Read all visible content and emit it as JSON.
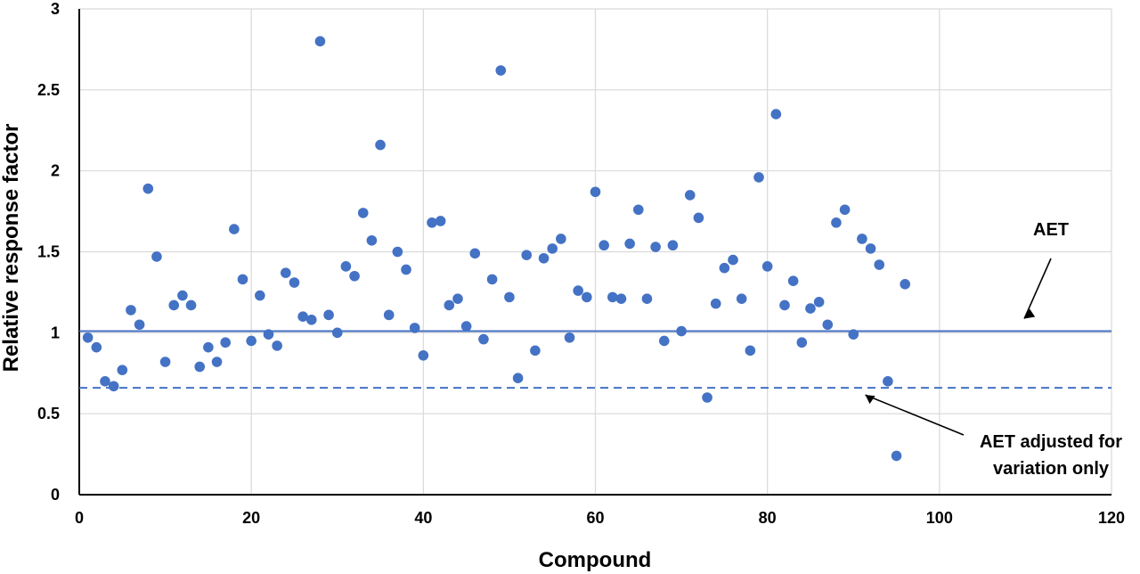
{
  "chart_data": {
    "type": "scatter",
    "xlabel": "Compound",
    "ylabel": "Relative response factor",
    "xlim": [
      0,
      120
    ],
    "ylim": [
      0,
      3
    ],
    "x_ticks": [
      "0",
      "20",
      "40",
      "60",
      "80",
      "100",
      "120"
    ],
    "y_ticks": [
      "0",
      "0.5",
      "1",
      "1.5",
      "2",
      "2.5",
      "3"
    ],
    "grid": true,
    "colors": {
      "points": "#4472C4",
      "lines": "#4472C4",
      "grid": "#d9d9d9"
    },
    "series": [
      {
        "x": [
          1,
          2,
          3,
          4,
          5,
          6,
          7,
          8,
          9,
          10,
          11,
          12,
          13,
          14,
          15,
          16,
          17,
          18,
          19,
          20,
          21,
          22,
          23,
          24,
          25,
          26,
          27,
          28,
          29,
          30,
          31,
          32,
          33,
          34,
          35,
          36,
          37,
          38,
          39,
          40,
          41,
          42,
          43,
          44,
          45,
          46,
          47,
          48,
          49,
          50,
          51,
          52,
          53,
          54,
          55,
          56,
          57,
          58,
          59,
          60,
          61,
          62,
          63,
          64,
          65,
          66,
          67,
          68,
          69,
          70,
          71,
          72,
          73,
          74,
          75,
          76,
          77,
          78,
          79,
          80,
          81,
          82,
          83,
          84,
          85,
          86,
          87,
          88,
          89,
          90,
          91,
          92,
          93,
          94,
          95,
          96
        ],
        "y": [
          0.97,
          0.91,
          0.7,
          0.67,
          0.77,
          1.14,
          1.05,
          1.89,
          1.47,
          0.82,
          1.17,
          1.23,
          1.17,
          0.79,
          0.91,
          0.82,
          0.94,
          1.64,
          1.33,
          0.95,
          1.23,
          0.99,
          0.92,
          1.37,
          1.31,
          1.1,
          1.08,
          2.8,
          1.11,
          1.0,
          1.41,
          1.35,
          1.74,
          1.57,
          2.16,
          1.11,
          1.5,
          1.39,
          1.03,
          0.86,
          1.68,
          1.69,
          1.17,
          1.21,
          1.04,
          1.49,
          0.96,
          1.33,
          2.62,
          1.22,
          0.72,
          1.48,
          0.89,
          1.46,
          1.52,
          1.58,
          0.97,
          1.26,
          1.22,
          1.87,
          1.54,
          1.22,
          1.21,
          1.55,
          1.76,
          1.21,
          1.53,
          0.95,
          1.54,
          1.01,
          1.85,
          1.71,
          0.6,
          1.18,
          1.4,
          1.45,
          1.21,
          0.89,
          1.96,
          1.41,
          2.35,
          1.17,
          1.32,
          0.94,
          1.15,
          1.19,
          1.05,
          1.68,
          1.76,
          0.99,
          1.58,
          1.52,
          1.42,
          0.7,
          0.24,
          1.3
        ]
      }
    ],
    "reference_lines": [
      {
        "y": 1.01,
        "style": "solid"
      },
      {
        "y": 0.66,
        "style": "dashed"
      }
    ],
    "annotations": [
      {
        "text": "AET",
        "arrow_to": {
          "x": 108,
          "y": 1.01
        }
      },
      {
        "text_lines": [
          "AET adjusted for",
          "variation only"
        ],
        "arrow_to": {
          "x": 92,
          "y": 0.66
        }
      }
    ]
  }
}
